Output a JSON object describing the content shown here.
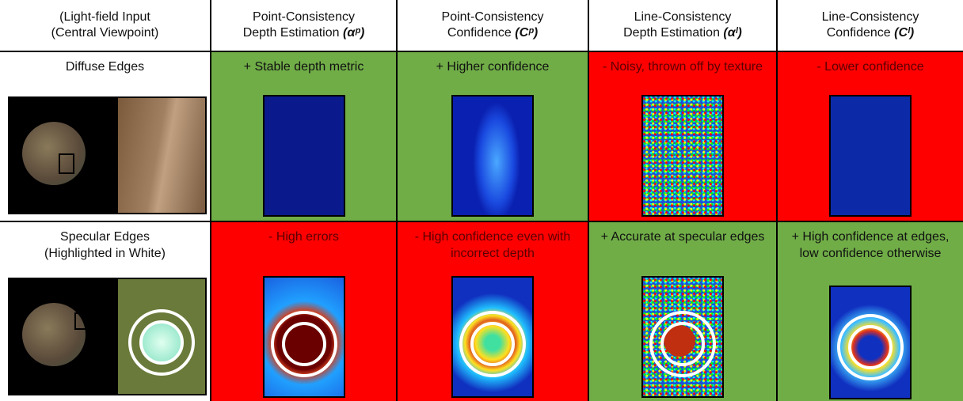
{
  "table": {
    "header": [
      {
        "lines": [
          "(Light-field Input",
          "(Central Viewpoint)"
        ]
      },
      {
        "lines": [
          "Point-Consistency",
          "Depth Estimation"
        ],
        "symbol": "(αᵖ)"
      },
      {
        "lines": [
          "Point-Consistency",
          "Confidence"
        ],
        "symbol": "(Cᵖ)"
      },
      {
        "lines": [
          "Line-Consistency",
          "Depth Estimation"
        ],
        "symbol": "(αˡ)"
      },
      {
        "lines": [
          "Line-Consistency",
          "Confidence"
        ],
        "symbol": "(Cˡ)"
      }
    ],
    "rows": [
      {
        "label": [
          "Diffuse Edges"
        ],
        "cells": [
          {
            "note": "+ Stable depth metric",
            "color": "#70ad47"
          },
          {
            "note": "+ Higher confidence",
            "color": "#70ad47"
          },
          {
            "note": "- Noisy, thrown off by texture",
            "color": "#ff0000"
          },
          {
            "note": "- Lower confidence",
            "color": "#ff0000"
          }
        ]
      },
      {
        "label": [
          "Specular Edges",
          "(Highlighted in White)"
        ],
        "cells": [
          {
            "note": "- High errors",
            "color": "#ff0000"
          },
          {
            "note": "- High confidence even with incorrect depth",
            "color": "#ff0000"
          },
          {
            "note": "+ Accurate at specular edges",
            "color": "#70ad47"
          },
          {
            "note": "+ High confidence at edges, low confidence otherwise",
            "color": "#70ad47"
          }
        ]
      }
    ]
  }
}
